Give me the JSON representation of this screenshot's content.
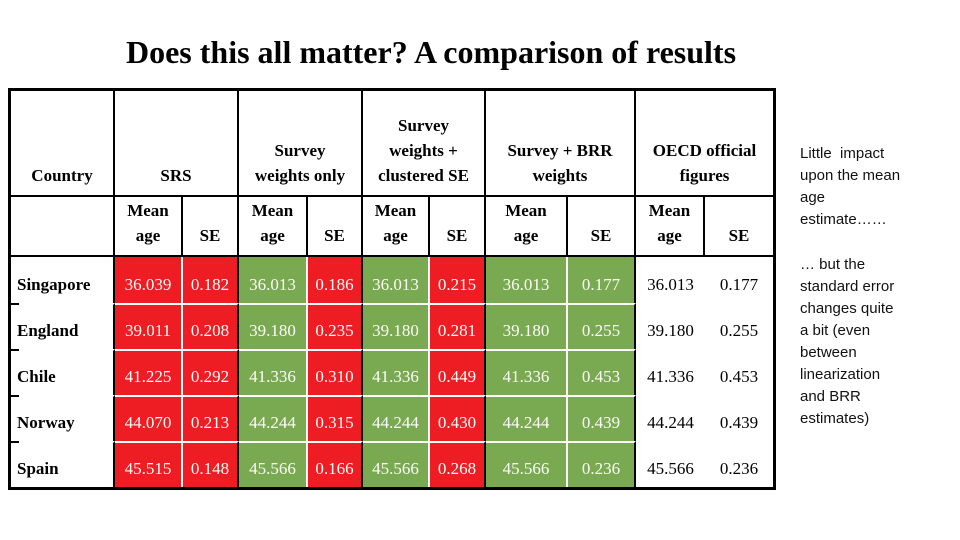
{
  "slide_title": "Does this all matter? A comparison of results",
  "table": {
    "header": {
      "country": "Country",
      "groups": [
        "SRS",
        "Survey\nweights only",
        "Survey\nweights +\nclustered SE",
        "Survey + BRR\nweights",
        "OECD official\nfigures"
      ],
      "mean_age": "Mean\nage",
      "se": "SE"
    },
    "rows": [
      {
        "country": "Singapore",
        "srs_mean": "36.039",
        "srs_se": "0.182",
        "swo_mean": "36.013",
        "swo_se": "0.186",
        "swc_mean": "36.013",
        "swc_se": "0.215",
        "brr_mean": "36.013",
        "brr_se": "0.177",
        "oecd_mean": "36.013",
        "oecd_se": "0.177"
      },
      {
        "country": "England",
        "srs_mean": "39.011",
        "srs_se": "0.208",
        "swo_mean": "39.180",
        "swo_se": "0.235",
        "swc_mean": "39.180",
        "swc_se": "0.281",
        "brr_mean": "39.180",
        "brr_se": "0.255",
        "oecd_mean": "39.180",
        "oecd_se": "0.255"
      },
      {
        "country": "Chile",
        "srs_mean": "41.225",
        "srs_se": "0.292",
        "swo_mean": "41.336",
        "swo_se": "0.310",
        "swc_mean": "41.336",
        "swc_se": "0.449",
        "brr_mean": "41.336",
        "brr_se": "0.453",
        "oecd_mean": "41.336",
        "oecd_se": "0.453"
      },
      {
        "country": "Norway",
        "srs_mean": "44.070",
        "srs_se": "0.213",
        "swo_mean": "44.244",
        "swo_se": "0.315",
        "swc_mean": "44.244",
        "swc_se": "0.430",
        "brr_mean": "44.244",
        "brr_se": "0.439",
        "oecd_mean": "44.244",
        "oecd_se": "0.439"
      },
      {
        "country": "Spain",
        "srs_mean": "45.515",
        "srs_se": "0.148",
        "swo_mean": "45.566",
        "swo_se": "0.166",
        "swc_mean": "45.566",
        "swc_se": "0.268",
        "brr_mean": "45.566",
        "brr_se": "0.236",
        "oecd_mean": "45.566",
        "oecd_se": "0.236"
      }
    ],
    "colors": {
      "mismatch_red": "#EE1C23",
      "match_green": "#79A951"
    }
  },
  "notes": {
    "note1": "Little  impact\nupon the mean\nage\nestimate……",
    "note2": "… but the\nstandard error\nchanges quite\na bit (even\nbetween\nlinearization\nand BRR\nestimates)"
  }
}
